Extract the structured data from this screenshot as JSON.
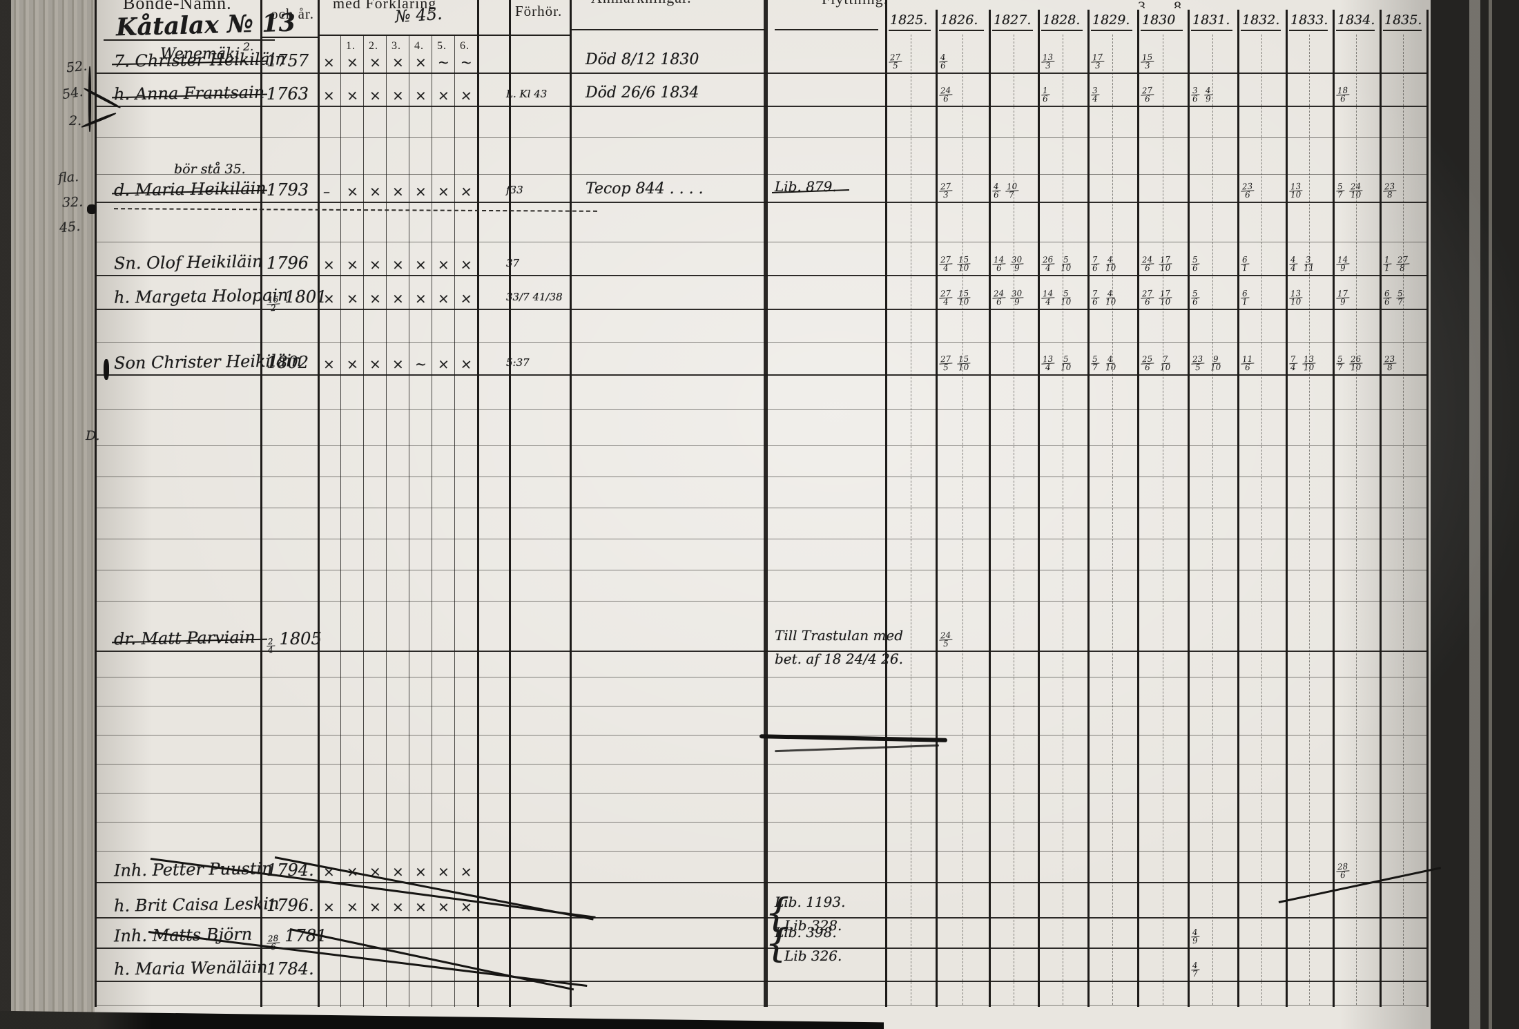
{
  "page": {
    "headings": {
      "bonde_namn": "Bonde-Namn.",
      "och_ar": "och år.",
      "med_forklaring": "med Förklaring",
      "no_note": "№ 45.",
      "forhor": "Förhör.",
      "anmarkning": "Anmärkningar.",
      "flyttning": "Flyttning.",
      "top_fragments": [
        "3",
        "8"
      ],
      "subcols": [
        "1.",
        "2.",
        "3.",
        "4.",
        "5.",
        "6."
      ],
      "years": [
        "1825.",
        "1826.",
        "1827.",
        "1828.",
        "1829.",
        "1830",
        "1831.",
        "1832.",
        "1833.",
        "1834.",
        "1835."
      ]
    },
    "title": {
      "farm": "Kåtalax № 13",
      "village": "Wenemäki",
      "village_sup": "2."
    },
    "margin_notes": [
      "52.",
      "54.",
      "2.",
      "fla.",
      "32.",
      "45.",
      "D."
    ],
    "rows": [
      {
        "name": "7. Christer Heikiläin",
        "birth": "1757",
        "premark": "x",
        "marks": [
          "x",
          "x",
          "x",
          "x",
          "~",
          "~"
        ],
        "struck": true,
        "remark": "Död 8/12 1830",
        "forhor": "",
        "cells": {
          "1825": "27/5",
          "1826": "4/6",
          "1828": "13/3",
          "1829": "17/3",
          "1830": "15/3"
        }
      },
      {
        "name": "h. Anna Frantsain",
        "birth": "1763",
        "premark": "x",
        "marks": [
          "x",
          "x",
          "x",
          "x",
          "x",
          "x"
        ],
        "struck": true,
        "remark": "Död 26/6 1834",
        "forhor": "L. Kl 43",
        "cells": {
          "1826": "24/6",
          "1828": "1/6",
          "1829": "3/4",
          "1830": "27/6",
          "1831": "3/6 4/9",
          "1834": "18/6"
        }
      },
      {
        "name": "d. Maria Heikiläin",
        "birth": "1793",
        "premark": "–",
        "marks": [
          "x",
          "x",
          "x",
          "x",
          "x",
          "x"
        ],
        "struck": true,
        "note_above": "bör stå 35.",
        "remark": "Tecop 844 . . . .",
        "forhor": "f33",
        "flytt": [
          "Lib. 879."
        ],
        "flytt_struck": true,
        "cells": {
          "1826": "27/3",
          "1827": "4/6 10/7",
          "1832": "23/6",
          "1833": "13/10",
          "1834": "5/7 24/10",
          "1835": "23/8"
        }
      },
      {
        "name": "Sn. Olof Heikiläin",
        "birth": "1796",
        "premark": "x",
        "marks": [
          "x",
          "x",
          "x",
          "x",
          "x",
          "x"
        ],
        "struck": false,
        "forhor": "37",
        "cells": {
          "1826": "27/4 15/10",
          "1827": "14/6 30/9",
          "1828": "26/4 5/10",
          "1829": "7/6 4/10",
          "1830": "24/6 17/10",
          "1831": "5/6",
          "1832": "6/1",
          "1833": "4/4 3/11",
          "1834": "14/9",
          "1835": "1/1 27/8"
        }
      },
      {
        "name": "h. Margeta Holopain",
        "birth": "16/2 1801",
        "premark": "x",
        "marks": [
          "x",
          "x",
          "x",
          "x",
          "x",
          "x"
        ],
        "struck": false,
        "forhor": "33/7 41/38",
        "cells": {
          "1826": "27/4 15/10",
          "1827": "24/6 30/9",
          "1828": "14/4 5/10",
          "1829": "7/6 4/10",
          "1830": "27/6 17/10",
          "1831": "5/6",
          "1832": "6/1",
          "1833": "13/10",
          "1834": "17/9",
          "1835": "6/6 5/7"
        }
      },
      {
        "name": "Son Christer Heikiläin",
        "birth": "1802",
        "premark": "x",
        "marks": [
          "x",
          "x",
          "x",
          "~",
          "x",
          "x"
        ],
        "struck": false,
        "forhor": "5:37",
        "cells": {
          "1826": "27/5 15/10",
          "1828": "13/4 5/10",
          "1829": "5/7 4/10",
          "1830": "25/6 7/10",
          "1831": "23/5 9/10",
          "1832": "11/6",
          "1833": "7/4 13/10",
          "1834": "5/7 26/10",
          "1835": "23/8"
        }
      },
      {
        "name": "dr. Matt Parviain",
        "birth": "2/4 1805",
        "premark": "",
        "marks": [],
        "struck": true,
        "flytt": [
          "Till Trastulan med",
          "bet. af 18 24/4 26."
        ],
        "cells": {
          "1826": "24/5"
        }
      },
      {
        "name": "Inh. Petter Puustin",
        "birth": "1794.",
        "premark": "x",
        "marks": [
          "x",
          "x",
          "x",
          "x",
          "x",
          "x"
        ],
        "struck": false,
        "cells": {
          "1834": "28/6"
        }
      },
      {
        "name": "h. Brit Caisa Leskin",
        "birth": "1796.",
        "premark": "x",
        "marks": [
          "x",
          "x",
          "x",
          "x",
          "x",
          "x"
        ],
        "struck": false,
        "flytt": [
          "Lib. 1193.",
          "Lib 328."
        ],
        "cells": {}
      },
      {
        "name": "Inh. Matts Björn",
        "birth": "28/6 1781",
        "premark": "",
        "marks": [],
        "struck": false,
        "flytt": [
          "Lib. 398.",
          "Lib 326."
        ],
        "cells": {
          "1831": "4/9"
        }
      },
      {
        "name": "h. Maria Wenäläin",
        "birth": "1784.",
        "premark": "",
        "marks": [],
        "struck": false,
        "cells": {
          "1831": "4/7"
        }
      }
    ]
  }
}
